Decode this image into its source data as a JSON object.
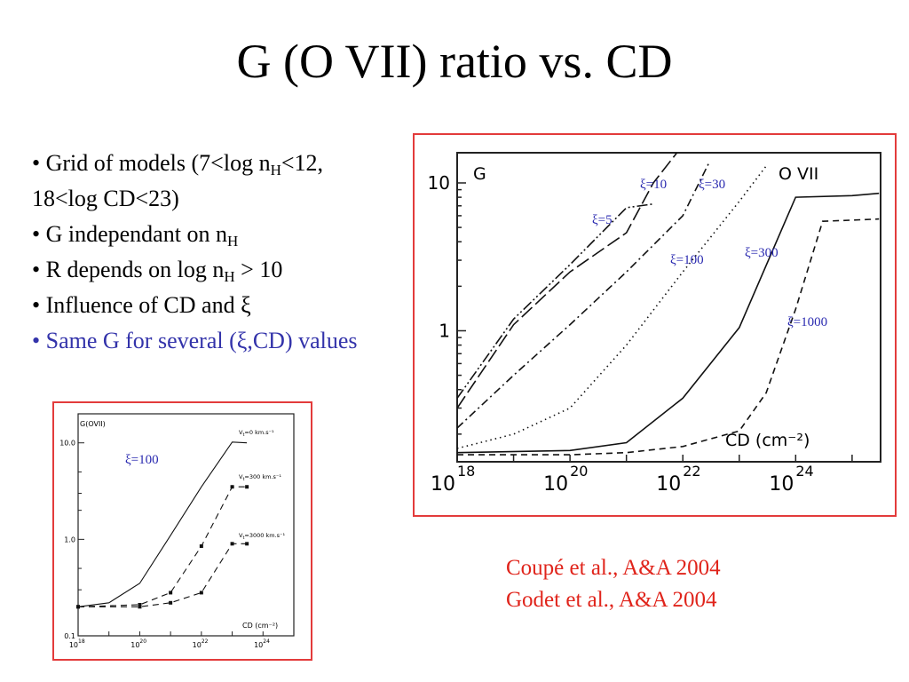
{
  "slide": {
    "title": "G (O VII) ratio vs. CD",
    "bullets": [
      {
        "parts": [
          "• Grid of models (7<log n",
          "H",
          "<12, 18<log CD<23)"
        ]
      },
      {
        "parts": [
          "• G independant on n",
          "H"
        ]
      },
      {
        "parts": [
          "• R depends on log n",
          "H",
          " > 10"
        ]
      },
      {
        "parts": [
          "• Influence of CD and ξ"
        ]
      },
      {
        "parts": [
          "• Same G for several (ξ,CD) values"
        ]
      }
    ],
    "citations": [
      "Coupé et al., A&A 2004",
      "Godet et al., A&A 2004"
    ],
    "colors": {
      "frame": "#e33b3b",
      "accent_text": "#3333aa",
      "citation": "#e0241b"
    }
  },
  "chart_data": [
    {
      "type": "line",
      "axis_corner_labels": [
        "G",
        "O VII"
      ],
      "xlabel": "CD (cm⁻²)",
      "x_scale": "log",
      "y_scale": "log",
      "xlim": [
        1e+18,
        3.2e+25
      ],
      "ylim": [
        0.13,
        16
      ],
      "x_tick_labels": [
        "10",
        "18",
        "10",
        "20",
        "10",
        "22",
        "10",
        "24"
      ],
      "y_tick_labels": [
        "10",
        "1"
      ],
      "grid": false,
      "series": [
        {
          "name": "ξ=5",
          "style": "dash-dot-dot",
          "points": [
            [
              1e+18,
              0.35
            ],
            [
              1e+19,
              1.2
            ],
            [
              1e+20,
              2.8
            ],
            [
              1e+21,
              6.8
            ],
            [
              3e+21,
              7.2
            ]
          ]
        },
        {
          "name": "ξ=10",
          "style": "long-dash",
          "points": [
            [
              1e+18,
              0.3
            ],
            [
              1e+19,
              1.1
            ],
            [
              1e+20,
              2.5
            ],
            [
              1e+21,
              4.6
            ],
            [
              3e+21,
              10
            ],
            [
              1e+22,
              18
            ]
          ]
        },
        {
          "name": "ξ=30",
          "style": "dash-dot",
          "points": [
            [
              1e+18,
              0.22
            ],
            [
              1e+19,
              0.5
            ],
            [
              1e+20,
              1.1
            ],
            [
              1e+21,
              2.5
            ],
            [
              1e+22,
              6
            ],
            [
              3e+22,
              14
            ]
          ]
        },
        {
          "name": "ξ=100",
          "style": "dotted",
          "points": [
            [
              1e+18,
              0.16
            ],
            [
              1e+19,
              0.2
            ],
            [
              1e+20,
              0.3
            ],
            [
              1e+21,
              0.8
            ],
            [
              1e+22,
              2.5
            ],
            [
              1e+23,
              7.5
            ],
            [
              3e+23,
              13
            ]
          ]
        },
        {
          "name": "ξ=300",
          "style": "solid",
          "points": [
            [
              1e+18,
              0.15
            ],
            [
              1e+20,
              0.155
            ],
            [
              1e+21,
              0.175
            ],
            [
              1e+22,
              0.35
            ],
            [
              1e+23,
              1.05
            ],
            [
              1e+24,
              8
            ],
            [
              1e+25,
              8.2
            ],
            [
              3e+25,
              8.5
            ]
          ]
        },
        {
          "name": "ξ=1000",
          "style": "dashed",
          "points": [
            [
              1e+18,
              0.145
            ],
            [
              1e+20,
              0.145
            ],
            [
              1e+21,
              0.15
            ],
            [
              1e+22,
              0.165
            ],
            [
              1e+23,
              0.21
            ],
            [
              3e+23,
              0.38
            ],
            [
              1e+24,
              1.4
            ],
            [
              3e+24,
              5.5
            ],
            [
              1e+25,
              5.6
            ],
            [
              3e+25,
              5.7
            ]
          ]
        }
      ]
    },
    {
      "type": "line",
      "corner_label": "G(OVII)",
      "annotation": "ξ=100",
      "xlabel": "CD (cm⁻²)",
      "x_scale": "log",
      "y_scale": "log",
      "xlim": [
        1e+18,
        1e+25
      ],
      "ylim": [
        0.1,
        20
      ],
      "x_tick_labels": [
        "10",
        "18",
        "10",
        "20",
        "10",
        "22",
        "10",
        "24"
      ],
      "y_tick_labels": [
        "10.0",
        "1.0",
        "0.1"
      ],
      "grid": false,
      "series": [
        {
          "name": "V",
          "sub": "t",
          "suffix": "=0 km.s⁻¹",
          "style": "solid",
          "points": [
            [
              1e+18,
              0.2
            ],
            [
              1e+19,
              0.22
            ],
            [
              1e+20,
              0.35
            ],
            [
              1e+21,
              1.1
            ],
            [
              1e+22,
              3.5
            ],
            [
              1e+23,
              10.2
            ],
            [
              3e+23,
              10
            ]
          ]
        },
        {
          "name": "V",
          "sub": "t",
          "suffix": "=300 km.s⁻¹",
          "style": "dashed",
          "points": [
            [
              1e+18,
              0.2
            ],
            [
              1e+20,
              0.21
            ],
            [
              1e+21,
              0.28
            ],
            [
              1e+22,
              0.85
            ],
            [
              1e+23,
              3.5
            ],
            [
              3e+23,
              3.5
            ]
          ]
        },
        {
          "name": "V",
          "sub": "t",
          "suffix": "=3000 km.s⁻¹",
          "style": "dashed",
          "points": [
            [
              1e+18,
              0.2
            ],
            [
              1e+20,
              0.2
            ],
            [
              1e+21,
              0.22
            ],
            [
              1e+22,
              0.28
            ],
            [
              1e+23,
              0.9
            ],
            [
              3e+23,
              0.9
            ]
          ]
        }
      ]
    }
  ]
}
